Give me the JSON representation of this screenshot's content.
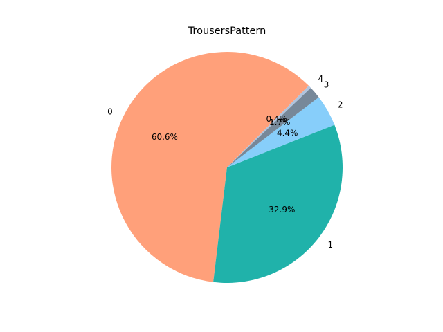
{
  "chart_data": {
    "type": "pie",
    "title": "TrousersPattern",
    "categories": [
      "0",
      "1",
      "2",
      "3",
      "4"
    ],
    "values": [
      60.6,
      32.9,
      4.4,
      1.7,
      0.4
    ],
    "percent_labels": [
      "60.6%",
      "32.9%",
      "4.4%",
      "1.7%",
      "0.4%"
    ],
    "colors": [
      "#FFA07A",
      "#20B2AA",
      "#87CEFA",
      "#778899",
      "#B0C4DE"
    ],
    "start_angle_deg": 45,
    "direction": "counterclockwise",
    "legend": "none"
  }
}
